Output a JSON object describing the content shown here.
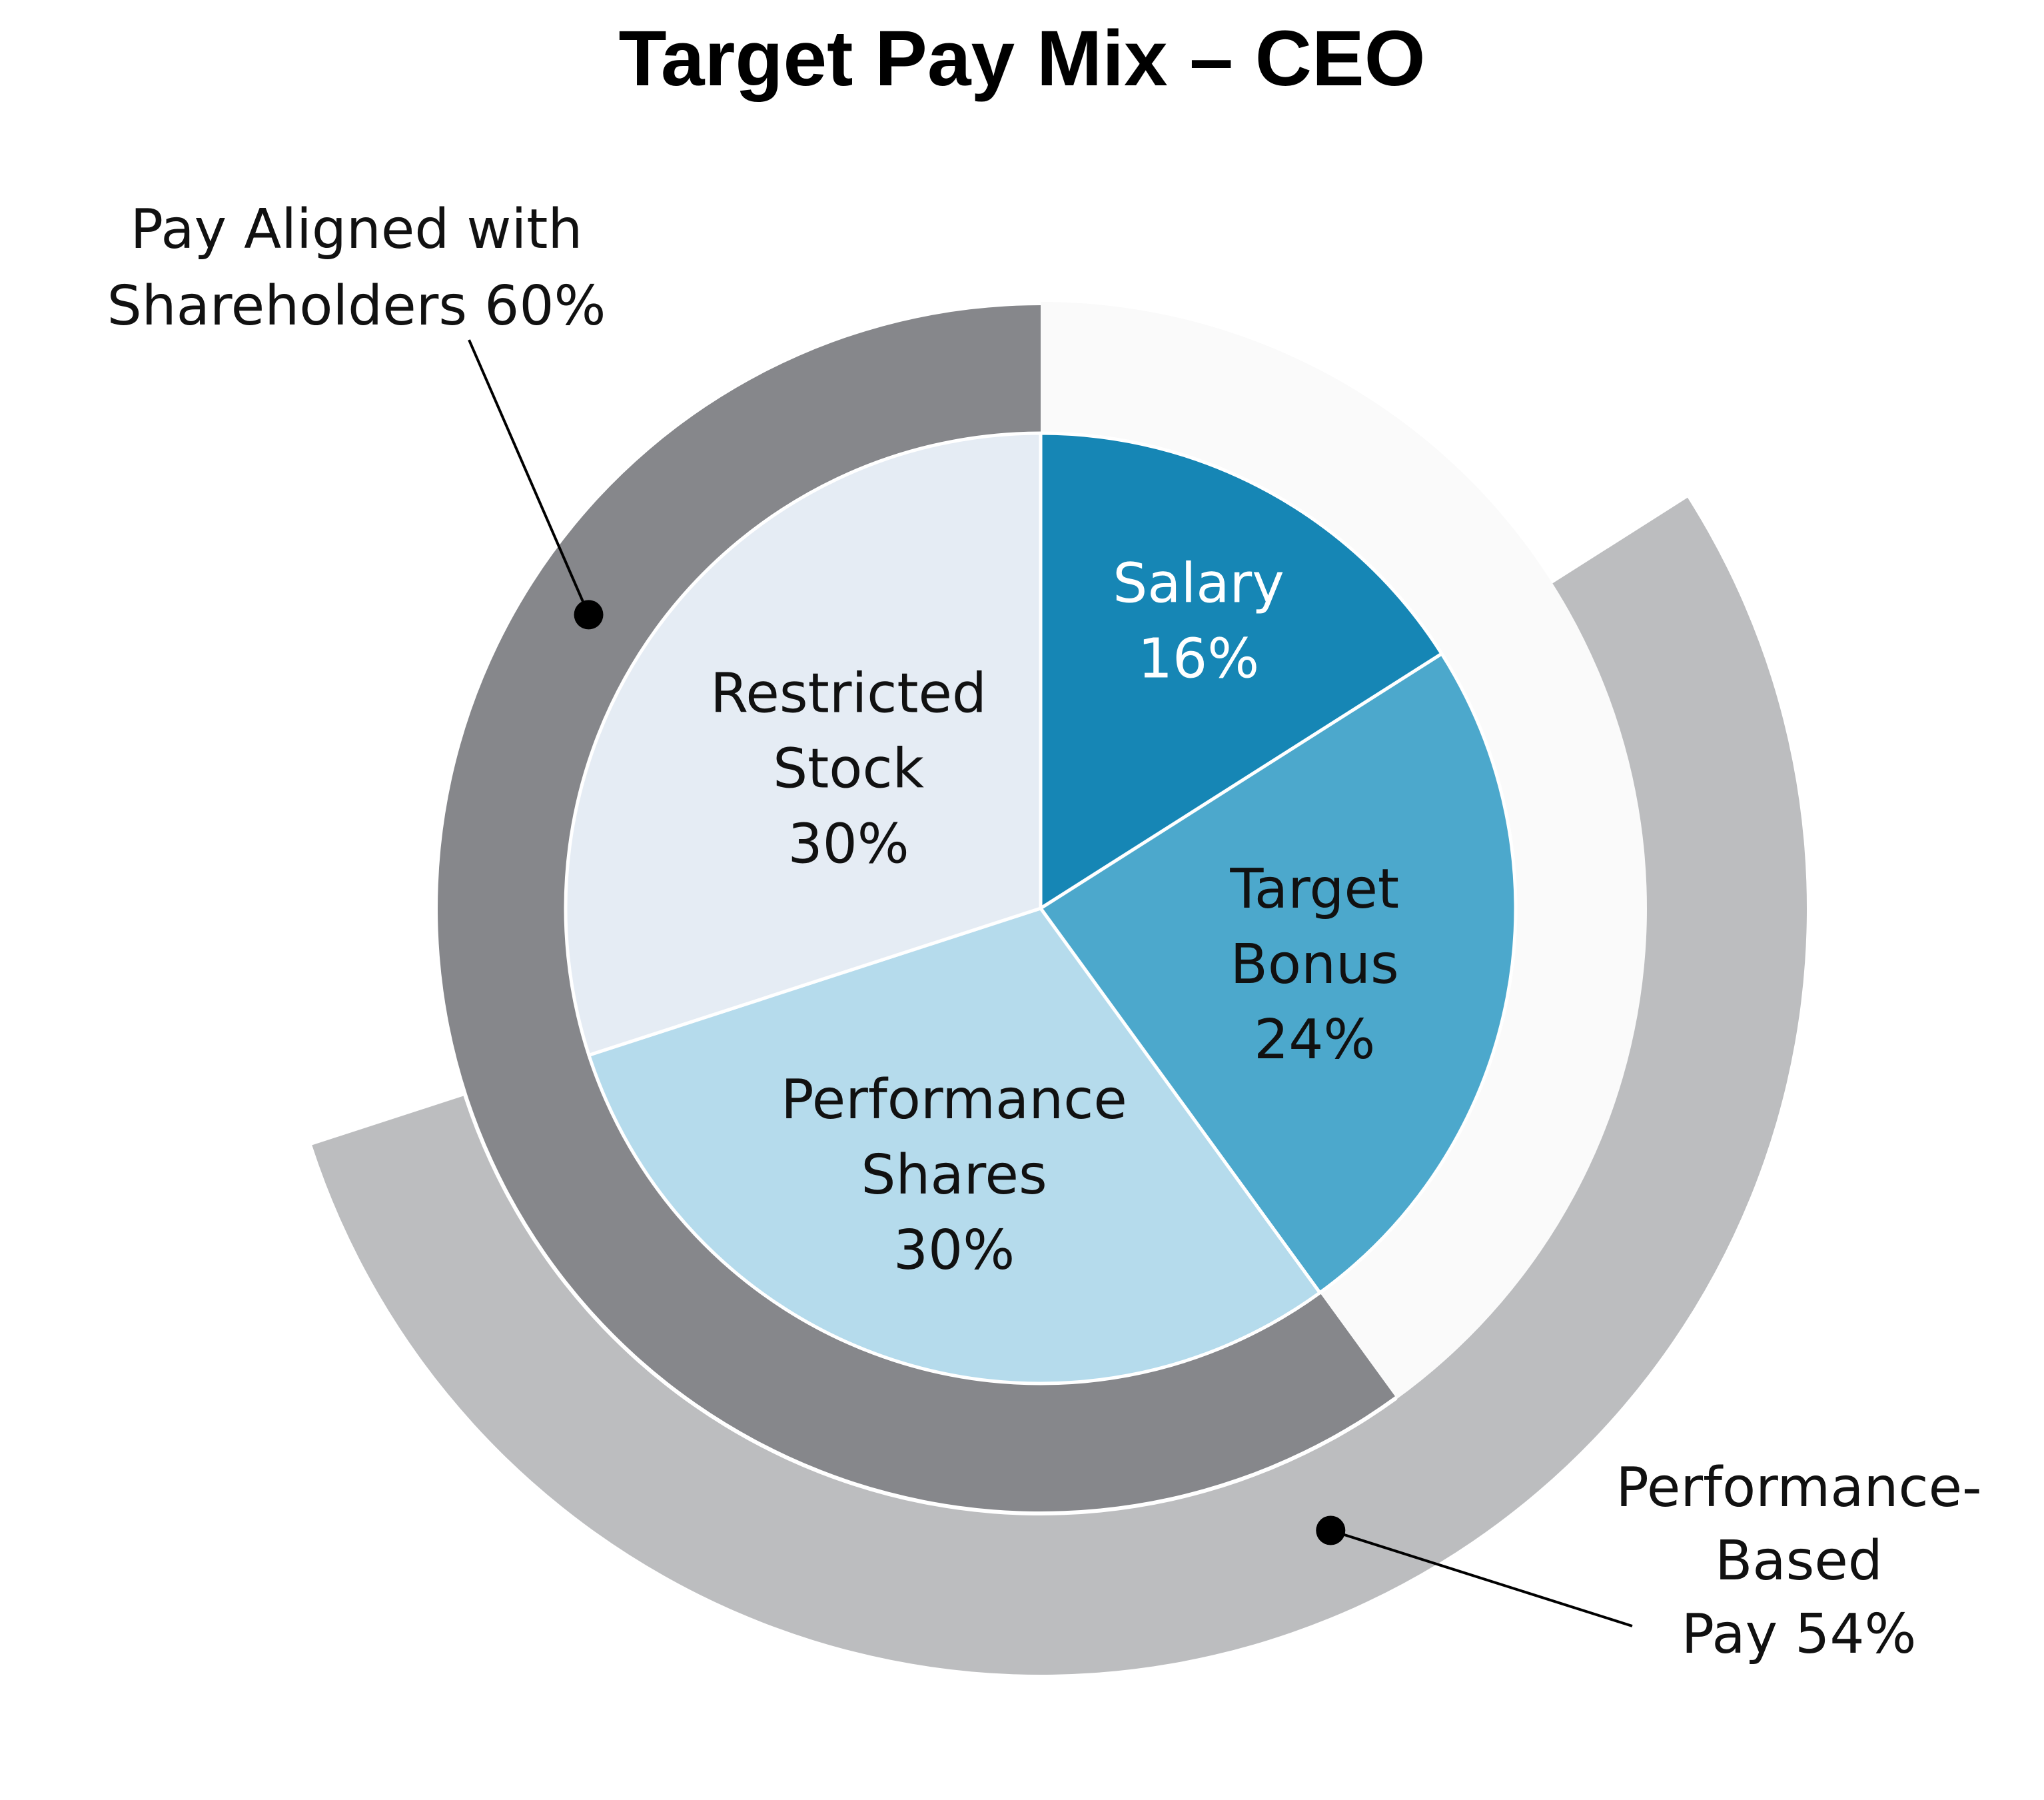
{
  "chart_data": {
    "type": "pie",
    "title": "Target Pay Mix – CEO",
    "slices": [
      {
        "name": "Salary",
        "label": "Salary",
        "value": 16,
        "value_label": "16%",
        "color": "#1686b5",
        "text_color": "#ffffff"
      },
      {
        "name": "Target Bonus",
        "label_lines": [
          "Target",
          "Bonus"
        ],
        "value": 24,
        "value_label": "24%",
        "color": "#4ca8cc",
        "text_color": "#111111"
      },
      {
        "name": "Performance Shares",
        "label_lines": [
          "Performance",
          "Shares"
        ],
        "value": 30,
        "value_label": "30%",
        "color": "#b5dbec",
        "text_color": "#111111"
      },
      {
        "name": "Restricted Stock",
        "label_lines": [
          "Restricted",
          "Stock"
        ],
        "value": 30,
        "value_label": "30%",
        "color": "#e5ecf4",
        "text_color": "#111111"
      }
    ],
    "rings": [
      {
        "name": "Pay Aligned with Shareholders",
        "value": 60,
        "label_lines": [
          "Pay Aligned with",
          "Shareholders 60%"
        ],
        "covers": [
          "Performance Shares",
          "Restricted Stock"
        ],
        "color": "#86878b",
        "placement": "inner ring, upper-left callout"
      },
      {
        "name": "Performance-Based Pay",
        "value": 54,
        "label_lines": [
          "Performance-",
          "Based",
          "Pay 54%"
        ],
        "covers": [
          "Target Bonus",
          "Performance Shares"
        ],
        "color": "#bcbdbf",
        "placement": "outer ring, lower-right callout"
      }
    ],
    "colors": {
      "separator": "#ffffff",
      "leader": "#000000",
      "background_arc": "#fafafa"
    }
  }
}
